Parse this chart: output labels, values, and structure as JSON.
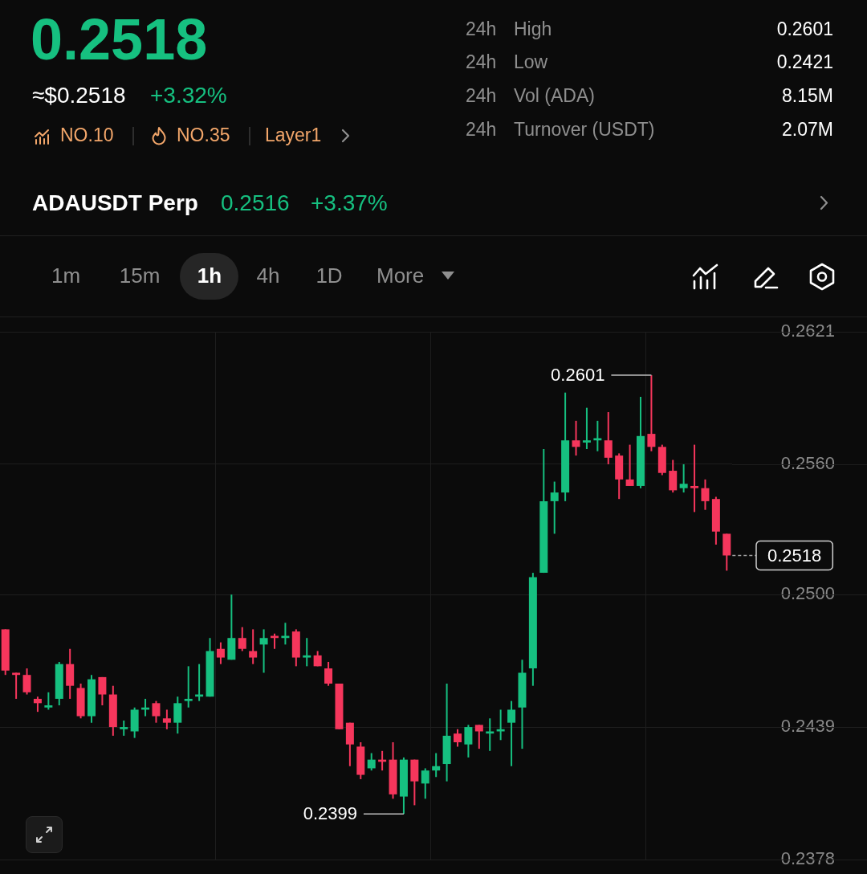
{
  "chart_data": {
    "type": "candlestick",
    "title": "0.2518",
    "categories": [
      null,
      null,
      null,
      null,
      null,
      null,
      null,
      null,
      null,
      null,
      null,
      null,
      null,
      null,
      null,
      null,
      null,
      null,
      null,
      null,
      null,
      null,
      null,
      null,
      null,
      null,
      null,
      null,
      null,
      null,
      null,
      null,
      null,
      null,
      null,
      null,
      null,
      null,
      null,
      null,
      null,
      null,
      null,
      null,
      null,
      null,
      null,
      null,
      null,
      null,
      null,
      null,
      null,
      null,
      null,
      null,
      null,
      null,
      null,
      null,
      null,
      null,
      null,
      null,
      null,
      null,
      null,
      null
    ],
    "ohlc": [
      [
        0.2484,
        0.2484,
        0.2463,
        0.2465
      ],
      [
        0.2464,
        0.2464,
        0.2452,
        0.2463
      ],
      [
        0.2463,
        0.2466,
        0.2454,
        0.2455
      ],
      [
        0.2452,
        0.2453,
        0.2446,
        0.245
      ],
      [
        0.2448,
        0.2455,
        0.2447,
        0.2449
      ],
      [
        0.2452,
        0.2469,
        0.2449,
        0.2468
      ],
      [
        0.2468,
        0.2475,
        0.2452,
        0.2458
      ],
      [
        0.2457,
        0.2459,
        0.2443,
        0.2444
      ],
      [
        0.2444,
        0.2463,
        0.2441,
        0.2461
      ],
      [
        0.2462,
        0.2462,
        0.2449,
        0.2454
      ],
      [
        0.2454,
        0.2458,
        0.2435,
        0.2439
      ],
      [
        0.2438,
        0.2442,
        0.2435,
        0.2439
      ],
      [
        0.2437,
        0.2448,
        0.2434,
        0.2447
      ],
      [
        0.2447,
        0.2452,
        0.2444,
        0.2448
      ],
      [
        0.245,
        0.2451,
        0.2441,
        0.2444
      ],
      [
        0.2443,
        0.2447,
        0.2438,
        0.2441
      ],
      [
        0.2441,
        0.2453,
        0.2436,
        0.245
      ],
      [
        0.2451,
        0.2467,
        0.2448,
        0.2452
      ],
      [
        0.2453,
        0.2468,
        0.2451,
        0.2454
      ],
      [
        0.2453,
        0.248,
        0.2453,
        0.2474
      ],
      [
        0.2475,
        0.2478,
        0.2468,
        0.2471
      ],
      [
        0.247,
        0.25,
        0.247,
        0.248
      ],
      [
        0.248,
        0.2485,
        0.2474,
        0.2475
      ],
      [
        0.2474,
        0.2484,
        0.2468,
        0.2471
      ],
      [
        0.2477,
        0.2484,
        0.2464,
        0.248
      ],
      [
        0.2481,
        0.2482,
        0.2475,
        0.248
      ],
      [
        0.248,
        0.2487,
        0.2477,
        0.2481
      ],
      [
        0.2483,
        0.2484,
        0.2467,
        0.2471
      ],
      [
        0.2471,
        0.248,
        0.2467,
        0.2472
      ],
      [
        0.2472,
        0.2474,
        0.2467,
        0.2467
      ],
      [
        0.2466,
        0.2469,
        0.2458,
        0.2459
      ],
      [
        0.2459,
        0.2459,
        0.2438,
        0.2438
      ],
      [
        0.2441,
        0.2441,
        0.2421,
        0.2431
      ],
      [
        0.243,
        0.2432,
        0.2415,
        0.2417
      ],
      [
        0.242,
        0.2427,
        0.2419,
        0.2424
      ],
      [
        0.2424,
        0.2428,
        0.2419,
        0.2423
      ],
      [
        0.2424,
        0.2432,
        0.2406,
        0.2408
      ],
      [
        0.2407,
        0.2425,
        0.2399,
        0.2424
      ],
      [
        0.2424,
        0.2424,
        0.2403,
        0.2414
      ],
      [
        0.2413,
        0.242,
        0.2406,
        0.2419
      ],
      [
        0.2419,
        0.2427,
        0.2416,
        0.2421
      ],
      [
        0.2422,
        0.2459,
        0.2414,
        0.2435
      ],
      [
        0.2436,
        0.2438,
        0.243,
        0.2432
      ],
      [
        0.2431,
        0.244,
        0.2425,
        0.2439
      ],
      [
        0.244,
        0.244,
        0.2429,
        0.2437
      ],
      [
        0.2436,
        0.2443,
        0.2428,
        0.2437
      ],
      [
        0.2437,
        0.2447,
        0.2433,
        0.2438
      ],
      [
        0.2441,
        0.2451,
        0.2421,
        0.2447
      ],
      [
        0.2448,
        0.247,
        0.2429,
        0.2464
      ],
      [
        0.2466,
        0.251,
        0.2458,
        0.2508
      ],
      [
        0.251,
        0.2567,
        0.251,
        0.2543
      ],
      [
        0.2543,
        0.2552,
        0.2528,
        0.2547
      ],
      [
        0.2547,
        0.2593,
        0.2543,
        0.2571
      ],
      [
        0.2571,
        0.258,
        0.2564,
        0.2568
      ],
      [
        0.257,
        0.2586,
        0.2567,
        0.2571
      ],
      [
        0.2571,
        0.258,
        0.2566,
        0.2572
      ],
      [
        0.2571,
        0.2584,
        0.256,
        0.2563
      ],
      [
        0.2564,
        0.2565,
        0.2544,
        0.2553
      ],
      [
        0.2553,
        0.2569,
        0.255,
        0.255
      ],
      [
        0.255,
        0.2591,
        0.2549,
        0.2573
      ],
      [
        0.2574,
        0.2601,
        0.2566,
        0.2568
      ],
      [
        0.2568,
        0.2569,
        0.2555,
        0.2556
      ],
      [
        0.2557,
        0.2562,
        0.2547,
        0.2548
      ],
      [
        0.2549,
        0.256,
        0.2547,
        0.2551
      ],
      [
        0.255,
        0.2569,
        0.2538,
        0.2549
      ],
      [
        0.2549,
        0.2553,
        0.2539,
        0.2543
      ],
      [
        0.2544,
        0.2545,
        0.2523,
        0.2529
      ],
      [
        0.2528,
        0.2528,
        0.2511,
        0.2518
      ]
    ],
    "colors": [
      "#f6365c",
      "#f6365c",
      "#f6365c",
      "#f6365c",
      "#16c080",
      "#16c080",
      "#f6365c",
      "#f6365c",
      "#16c080",
      "#f6365c",
      "#f6365c",
      "#16c080",
      "#16c080",
      "#16c080",
      "#f6365c",
      "#f6365c",
      "#16c080",
      "#16c080",
      "#16c080",
      "#16c080",
      "#f6365c",
      "#16c080",
      "#f6365c",
      "#f6365c",
      "#16c080",
      "#f6365c",
      "#16c080",
      "#f6365c",
      "#16c080",
      "#f6365c",
      "#f6365c",
      "#f6365c",
      "#f6365c",
      "#f6365c",
      "#16c080",
      "#f6365c",
      "#f6365c",
      "#16c080",
      "#f6365c",
      "#16c080",
      "#16c080",
      "#16c080",
      "#f6365c",
      "#16c080",
      "#f6365c",
      "#16c080",
      "#16c080",
      "#16c080",
      "#16c080",
      "#16c080",
      "#16c080",
      "#16c080",
      "#16c080",
      "#f6365c",
      "#16c080",
      "#16c080",
      "#f6365c",
      "#f6365c",
      "#f6365c",
      "#16c080",
      "#f6365c",
      "#f6365c",
      "#f6365c",
      "#16c080",
      "#f6365c",
      "#f6365c",
      "#f6365c",
      "#f6365c"
    ],
    "ylim": [
      0.2378,
      0.2621
    ],
    "yticks": [
      0.2378,
      0.2439,
      {
        "value": 0.25,
        "label": "0.2500"
      },
      {
        "value": 0.256,
        "label": "0.2560"
      },
      0.2621
    ],
    "grid": true,
    "tick_labels": "y",
    "ref_lines": [
      {
        "axis": "y",
        "value": 0.2518,
        "label": "0.2518",
        "line_style": "dashed"
      }
    ],
    "annotations": [
      "≈$0.2518",
      "+3.32%",
      "NO.10",
      "NO.35",
      "Layer1",
      "24h",
      "High",
      "0.2601",
      "24h",
      "Low",
      "0.2421",
      "24h",
      "Vol (ADA)",
      "8.15M",
      "24h",
      "Turnover (USDT)",
      "2.07M",
      "ADAUSDT Perp",
      "0.2516",
      "+3.37%",
      "1m",
      "15m",
      "1h",
      "4h",
      "1D",
      "More",
      "0.2601",
      "0.2399"
    ]
  }
}
